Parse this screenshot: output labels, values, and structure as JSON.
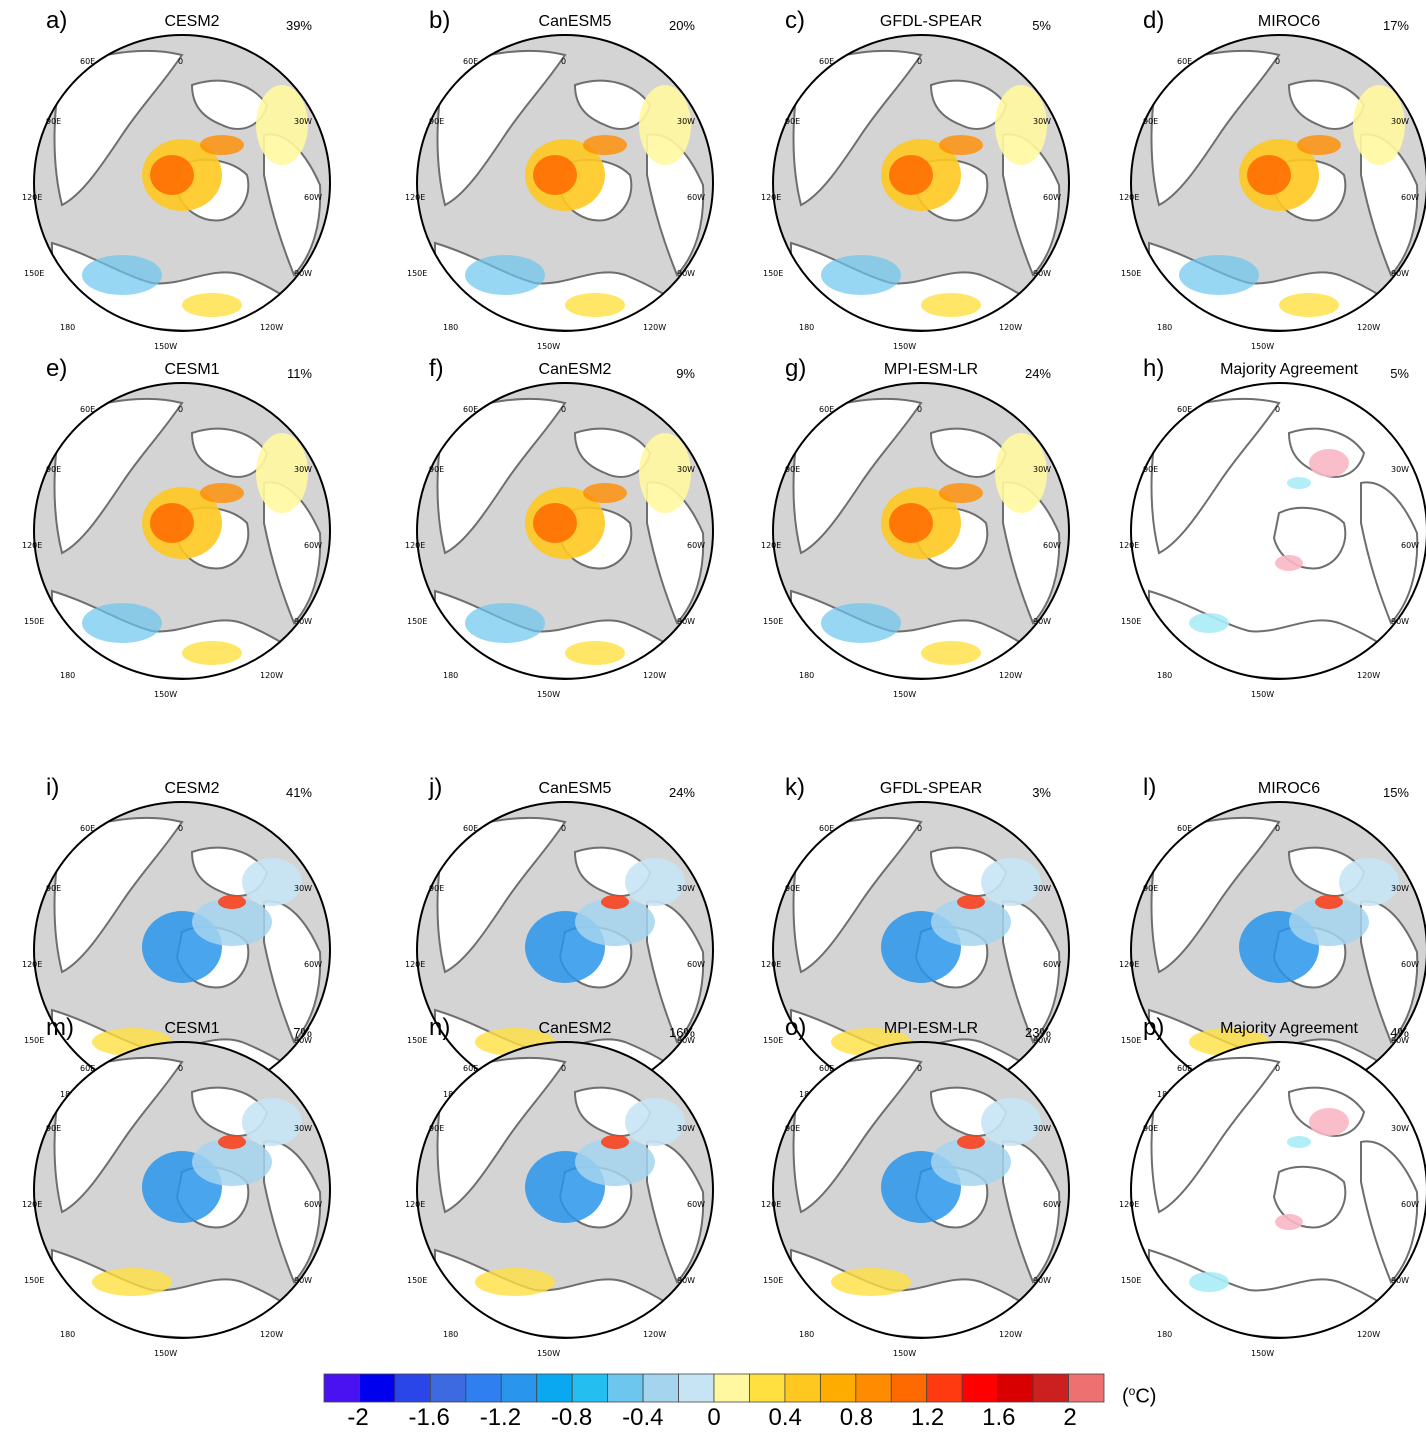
{
  "chart_data": {
    "type": "heatmap",
    "unit": "(oC)",
    "colorbar": {
      "ticks": [
        "-2",
        "-1.6",
        "-1.2",
        "-0.8",
        "-0.4",
        "0",
        "0.4",
        "0.8",
        "1.2",
        "1.6",
        "2"
      ],
      "colors": [
        "#4a12f0",
        "#0000ee",
        "#2a46e8",
        "#3d6ae0",
        "#2f7ff0",
        "#2a95ec",
        "#0aa8f0",
        "#24bef0",
        "#6cc6ee",
        "#a4d4ee",
        "#c6e4f4",
        "#fff8a0",
        "#ffe040",
        "#ffc820",
        "#ffac00",
        "#ff8c00",
        "#ff6a00",
        "#ff3a10",
        "#ff0000",
        "#d80000",
        "#cc2020",
        "#ee7070"
      ]
    },
    "panels": [
      {
        "letter": "a)",
        "title": "CESM2",
        "percent": "39%",
        "pattern": "warm"
      },
      {
        "letter": "b)",
        "title": "CanESM5",
        "percent": "20%",
        "pattern": "warm"
      },
      {
        "letter": "c)",
        "title": "GFDL-SPEAR",
        "percent": "5%",
        "pattern": "warm"
      },
      {
        "letter": "d)",
        "title": "MIROC6",
        "percent": "17%",
        "pattern": "warm"
      },
      {
        "letter": "e)",
        "title": "CESM1",
        "percent": "11%",
        "pattern": "warm"
      },
      {
        "letter": "f)",
        "title": "CanESM2",
        "percent": "9%",
        "pattern": "warm"
      },
      {
        "letter": "g)",
        "title": "MPI-ESM-LR",
        "percent": "24%",
        "pattern": "warm"
      },
      {
        "letter": "h)",
        "title": "Majority Agreement",
        "percent": "5%",
        "pattern": "agree"
      },
      {
        "letter": "i)",
        "title": "CESM2",
        "percent": "41%",
        "pattern": "cool"
      },
      {
        "letter": "j)",
        "title": "CanESM5",
        "percent": "24%",
        "pattern": "cool"
      },
      {
        "letter": "k)",
        "title": "GFDL-SPEAR",
        "percent": "3%",
        "pattern": "cool"
      },
      {
        "letter": "l)",
        "title": "MIROC6",
        "percent": "15%",
        "pattern": "cool"
      },
      {
        "letter": "m)",
        "title": "CESM1",
        "percent": "7%",
        "pattern": "cool"
      },
      {
        "letter": "n)",
        "title": "CanESM2",
        "percent": "16%",
        "pattern": "cool"
      },
      {
        "letter": "o)",
        "title": "MPI-ESM-LR",
        "percent": "23%",
        "pattern": "cool"
      },
      {
        "letter": "p)",
        "title": "Majority Agreement",
        "percent": "4%",
        "pattern": "agree"
      }
    ],
    "lon_labels": [
      "60E",
      "0",
      "90E",
      "30W",
      "120E",
      "60W",
      "150E",
      "90W",
      "180",
      "120W",
      "150W"
    ]
  }
}
